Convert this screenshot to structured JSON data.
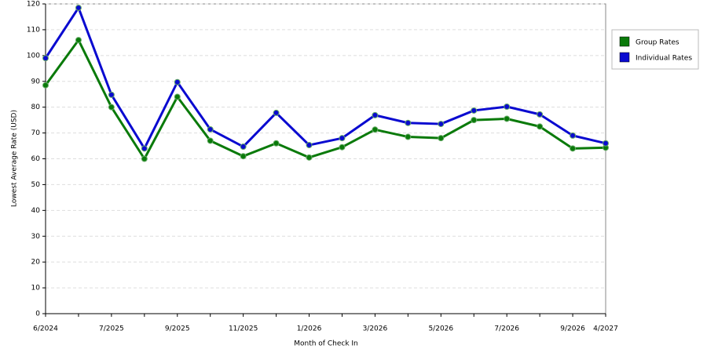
{
  "chart_data": {
    "type": "line",
    "x_label": "Month of Check In",
    "y_label": "Lowest Average Rate (USD)",
    "categories": [
      "6/2024",
      null,
      "7/2025",
      null,
      "9/2025",
      null,
      "11/2025",
      null,
      "1/2026",
      null,
      "3/2026",
      null,
      "5/2026",
      null,
      "7/2026",
      null,
      "9/2026",
      "4/2027"
    ],
    "series": [
      {
        "name": "Group Rates",
        "color": "#0a7a0a",
        "values": [
          88.5,
          106,
          80,
          60,
          84,
          67,
          61,
          66,
          60.5,
          64.5,
          71.3,
          68.5,
          68,
          75,
          75.5,
          72.5,
          64,
          64.3
        ]
      },
      {
        "name": "Individual Rates",
        "color": "#0a0ad0",
        "values": [
          99,
          118.5,
          84.8,
          64,
          89.7,
          71.4,
          64.7,
          77.8,
          65.3,
          68,
          76.9,
          73.9,
          73.5,
          78.7,
          80.2,
          77.2,
          69,
          66
        ]
      }
    ],
    "ylim": [
      0,
      120
    ],
    "yticks": [
      0,
      10,
      20,
      30,
      40,
      50,
      60,
      70,
      80,
      90,
      100,
      110,
      120
    ],
    "grid": true,
    "legend": "right"
  }
}
